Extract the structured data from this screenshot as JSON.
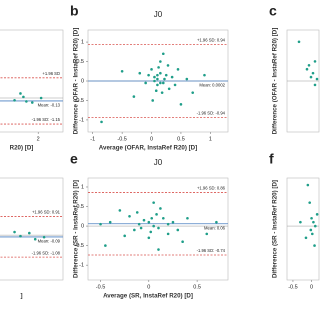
{
  "chart_data": [
    {
      "type": "scatter",
      "x_label": "R20) [D]",
      "color": "#1f9e89",
      "x": [
        1.6,
        1.75,
        1.9,
        1.8,
        2.05,
        1.7
      ],
      "y": [
        -0.1,
        0.05,
        -0.2,
        -0.15,
        0.0,
        0.2
      ],
      "xlim": [
        0,
        2.42
      ],
      "ylim": [
        -1.5,
        3
      ],
      "xticks": [
        2
      ],
      "reference_lines": [
        {
          "label": "+1.96 SD",
          "value": 0.89,
          "color": "#d9534f"
        },
        {
          "label": "Mean: -0.13",
          "value": -0.13,
          "color": "#4a7fc1"
        },
        {
          "label": "-1.96 SD: -1.15",
          "value": -1.15,
          "color": "#d9534f"
        }
      ]
    },
    {
      "type": "scatter",
      "panel": "b",
      "title": "J0",
      "x_label": "Average (OFAR, InstaRef R20) [D]",
      "y_label": "Difference (OFAR - InstaRef R20) [D]",
      "color": "#1f9e89",
      "x": [
        0.05,
        0.1,
        0.15,
        0.2,
        0.1,
        0.0,
        0.25,
        0.3,
        0.05,
        0.12,
        0.18,
        -0.05,
        0.22,
        0.35,
        0.08,
        -0.1,
        0.15,
        0.28,
        0.4,
        -0.2,
        0.6,
        0.45,
        -0.3,
        0.2,
        0.02,
        0.7,
        -0.5,
        0.9,
        -0.85,
        0.5,
        0.15,
        0.1
      ],
      "y": [
        0.1,
        0.05,
        0.2,
        -0.05,
        -0.1,
        0.3,
        0.15,
        -0.2,
        0.0,
        0.35,
        -0.3,
        0.15,
        0.05,
        0.1,
        -0.25,
        -0.05,
        0.5,
        0.4,
        -0.1,
        0.2,
        0.05,
        0.3,
        -0.4,
        0.7,
        -0.5,
        -0.3,
        0.25,
        0.15,
        -1.05,
        -0.6,
        -0.05,
        0.15
      ],
      "xlim": [
        -1.08,
        1.3
      ],
      "ylim": [
        -1.31,
        1.31
      ],
      "xticks": [
        -1,
        -0.5,
        0,
        0.5,
        1
      ],
      "yticks": [
        1,
        0.5,
        0,
        -0.5,
        -1
      ],
      "reference_lines": [
        {
          "label": "+1.96 SD: 0.94",
          "value": 0.94,
          "color": "#d9534f"
        },
        {
          "label": "Mean: 0.0002",
          "value": 0.0002,
          "color": "#4a7fc1"
        },
        {
          "label": "-1.96 SD: -0.94",
          "value": -0.94,
          "color": "#d9534f"
        }
      ]
    },
    {
      "type": "scatter",
      "panel": "c",
      "y_label": "Difference (OFAR - InstaRef R20) [D]",
      "color": "#1f9e89",
      "x": [
        -0.3,
        -0.1,
        0.0,
        0.05,
        0.1,
        -0.05,
        0.15,
        0.1
      ],
      "y": [
        1.0,
        0.3,
        0.1,
        0.2,
        -0.1,
        0.4,
        0.05,
        0.5
      ],
      "xlim": [
        -0.6,
        0.2
      ],
      "ylim": [
        -1.3,
        1.3
      ]
    },
    {
      "type": "scatter",
      "x_label": "]",
      "color": "#1f9e89",
      "x": [
        1.7,
        1.85,
        1.95,
        1.6,
        2.1
      ],
      "y": [
        -0.05,
        0.1,
        -0.2,
        0.15,
        -0.1
      ],
      "xlim": [
        0,
        2.42
      ],
      "ylim": [
        -2.2,
        2.8
      ],
      "reference_lines": [
        {
          "label": "+1.96 SD: 0.91",
          "value": 0.91,
          "color": "#d9534f"
        },
        {
          "label": "Mean: -0.09",
          "value": -0.09,
          "color": "#4a7fc1"
        },
        {
          "label": "-1.96 SD: -1.08",
          "value": -1.08,
          "color": "#d9534f"
        }
      ]
    },
    {
      "type": "scatter",
      "panel": "e",
      "title": "J0",
      "x_label": "Average (SR, InstaRef R20) [D]",
      "y_label": "Difference (SR - InstaRef R20) [D]",
      "color": "#1f9e89",
      "x": [
        0.0,
        0.05,
        -0.05,
        0.1,
        0.02,
        -0.1,
        0.15,
        -0.15,
        0.08,
        -0.2,
        0.2,
        0.0,
        -0.3,
        0.25,
        -0.08,
        0.12,
        0.3,
        -0.25,
        0.4,
        -0.4,
        0.35,
        -0.5,
        0.6,
        -0.45,
        0.05,
        0.1,
        0.7,
        0.2,
        -0.12,
        0.03
      ],
      "y": [
        0.1,
        0.0,
        0.15,
        -0.05,
        -0.15,
        0.05,
        0.2,
        -0.1,
        0.3,
        0.25,
        -0.2,
        -0.3,
        0.4,
        0.1,
        -0.05,
        0.45,
        -0.1,
        -0.25,
        0.2,
        0.1,
        -0.4,
        0.05,
        -0.2,
        -0.5,
        0.6,
        -0.6,
        0.1,
        0.05,
        0.35,
        0.2
      ],
      "xlim": [
        -0.63,
        0.82
      ],
      "ylim": [
        -1.38,
        1.23
      ],
      "xticks": [
        -0.5,
        0,
        0.5
      ],
      "yticks": [
        1,
        0.5,
        0,
        -0.5,
        -1
      ],
      "reference_lines": [
        {
          "label": "+1.96 SD: 0.86",
          "value": 0.86,
          "color": "#d9534f"
        },
        {
          "label": "Mean: 0.06",
          "value": 0.06,
          "color": "#4a7fc1"
        },
        {
          "label": "-1.96 SD: -0.74",
          "value": -0.74,
          "color": "#d9534f"
        }
      ]
    },
    {
      "type": "scatter",
      "panel": "f",
      "y_label": "Difference (SR - InstaRef R20) [D]",
      "color": "#1f9e89",
      "x": [
        -0.1,
        -0.05,
        0.0,
        0.05,
        -0.02,
        0.1,
        -0.15,
        0.08,
        0.15,
        -0.3,
        0.02
      ],
      "y": [
        1.05,
        0.6,
        0.2,
        0.1,
        -0.1,
        0.0,
        -0.3,
        -0.5,
        0.3,
        0.1,
        -0.2
      ],
      "xlim": [
        -0.66,
        0.2
      ],
      "ylim": [
        -1.38,
        1.23
      ],
      "xticks": [
        -0.5,
        0
      ]
    }
  ]
}
